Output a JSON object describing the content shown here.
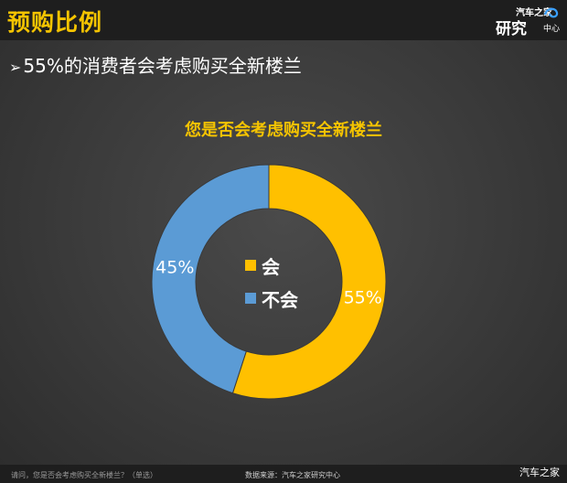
{
  "header": {
    "title": "预购比例",
    "logo": {
      "line1": "汽车之家",
      "line2": "研究",
      "line3": "中心"
    }
  },
  "headline": "55%的消费者会考虑购买全新楼兰",
  "chart_data": {
    "type": "pie",
    "title": "您是否会考虑购买全新楼兰",
    "donut": true,
    "categories": [
      "会",
      "不会"
    ],
    "values": [
      55,
      45
    ],
    "data_labels": [
      "55%",
      "45%"
    ],
    "colors": [
      "#FFC000",
      "#5B9BD5"
    ],
    "legend_position": "center"
  },
  "footer": {
    "question": "请问，您是否会考虑购买全新楼兰？（单选）",
    "source": "数据来源：汽车之家研究中心"
  },
  "watermark": "汽车之家"
}
